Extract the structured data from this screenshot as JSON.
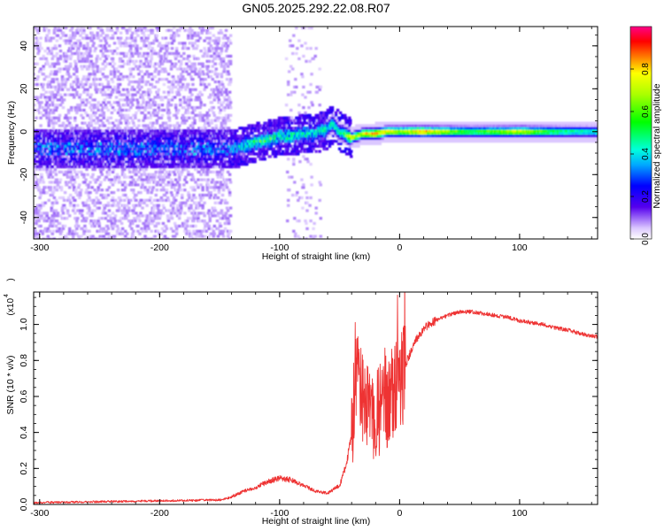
{
  "title": "GN05.2025.292.22.08.R07",
  "colors": {
    "snr_line": "#ee3333",
    "axis": "#000000"
  },
  "chart_data": [
    {
      "type": "heatmap",
      "title": "GN05.2025.292.22.08.R07",
      "xlabel": "Height of straight line (km)",
      "ylabel": "Frequency (Hz)",
      "xlim": [
        -305,
        165
      ],
      "ylim": [
        -50,
        49
      ],
      "xticks": [
        {
          "value": -300,
          "label": "-300"
        },
        {
          "value": -200,
          "label": "-200"
        },
        {
          "value": -100,
          "label": "-100"
        },
        {
          "value": 0,
          "label": "0"
        },
        {
          "value": 100,
          "label": "100"
        }
      ],
      "yticks": [
        {
          "value": -40,
          "label": "-40"
        },
        {
          "value": -20,
          "label": "-20"
        },
        {
          "value": 0,
          "label": "0"
        },
        {
          "value": 20,
          "label": "20"
        },
        {
          "value": 40,
          "label": "40"
        }
      ],
      "colorbar": {
        "label": "Normalized spectral amplitude",
        "range": [
          0.0,
          1.0
        ],
        "ticks": [
          {
            "value": 0.0,
            "label": "0.0"
          },
          {
            "value": 0.2,
            "label": "0.2"
          },
          {
            "value": 0.4,
            "label": "0.4"
          },
          {
            "value": 0.6,
            "label": "0.6"
          },
          {
            "value": 0.8,
            "label": "0.8"
          }
        ]
      },
      "ridge": {
        "height_km": [
          -140,
          -130,
          -120,
          -110,
          -100,
          -90,
          -80,
          -70,
          -60,
          -55,
          -50,
          -45,
          -40,
          -35,
          -30,
          -20,
          -10,
          0,
          20,
          40,
          60,
          80,
          100,
          120,
          140,
          160
        ],
        "frequency_hz": [
          -8,
          -7,
          -5,
          -4,
          -2,
          -2,
          -1,
          -1,
          1,
          4,
          0,
          -1,
          -3,
          -2,
          -1,
          -1,
          0,
          0,
          0,
          0,
          0,
          0,
          0,
          0,
          0,
          0
        ],
        "amplitude": [
          0.25,
          0.35,
          0.45,
          0.5,
          0.4,
          0.45,
          0.4,
          0.35,
          0.45,
          0.55,
          0.5,
          0.6,
          0.8,
          0.7,
          0.75,
          0.85,
          0.8,
          0.7,
          0.85,
          0.7,
          0.55,
          0.65,
          0.75,
          0.6,
          0.5,
          0.45
        ]
      }
    },
    {
      "type": "line",
      "xlabel": "Height of straight line (km)",
      "ylabel": "SNR (10 * v/v)",
      "scale_label": "(x10",
      "scale_exponent": "4",
      "xlim": [
        -305,
        165
      ],
      "ylim": [
        0.0,
        1.18
      ],
      "xticks": [
        {
          "value": -300,
          "label": "-300"
        },
        {
          "value": -200,
          "label": "-200"
        },
        {
          "value": -100,
          "label": "-100"
        },
        {
          "value": 0,
          "label": "0"
        },
        {
          "value": 100,
          "label": "100"
        }
      ],
      "yticks": [
        {
          "value": 0.0,
          "label": "0.0"
        },
        {
          "value": 0.2,
          "label": "0.2"
        },
        {
          "value": 0.4,
          "label": "0.4"
        },
        {
          "value": 0.6,
          "label": "0.6"
        },
        {
          "value": 0.8,
          "label": "0.8"
        },
        {
          "value": 1.0,
          "label": "1.0"
        }
      ],
      "series": [
        {
          "name": "SNR",
          "x": [
            -305,
            -250,
            -200,
            -150,
            -140,
            -130,
            -120,
            -110,
            -100,
            -90,
            -80,
            -70,
            -60,
            -50,
            -45,
            -40,
            -37,
            -35,
            -30,
            -25,
            -20,
            -15,
            -10,
            -5,
            0,
            5,
            10,
            15,
            20,
            30,
            40,
            50,
            60,
            70,
            80,
            90,
            100,
            110,
            120,
            130,
            140,
            150,
            165
          ],
          "y": [
            0.01,
            0.015,
            0.02,
            0.025,
            0.04,
            0.07,
            0.09,
            0.12,
            0.14,
            0.13,
            0.1,
            0.07,
            0.06,
            0.1,
            0.2,
            0.35,
            0.8,
            0.75,
            0.6,
            0.55,
            0.5,
            0.55,
            0.6,
            0.65,
            0.7,
            0.78,
            0.86,
            0.93,
            0.98,
            1.02,
            1.05,
            1.07,
            1.07,
            1.06,
            1.05,
            1.04,
            1.02,
            1.01,
            1.0,
            0.98,
            0.97,
            0.95,
            0.93
          ]
        }
      ]
    }
  ]
}
